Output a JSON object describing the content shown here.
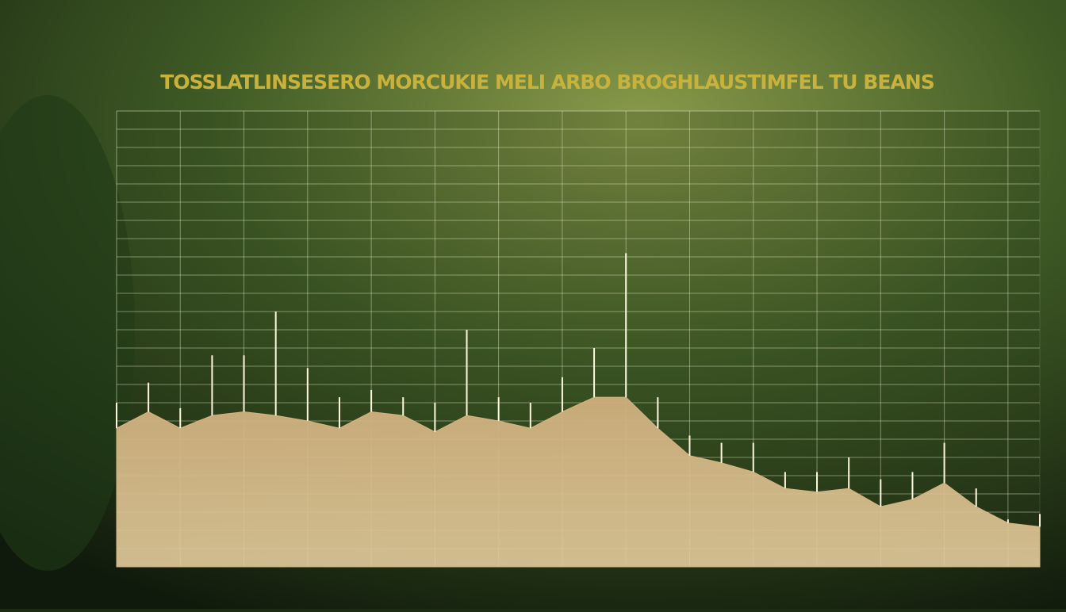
{
  "chart_data": {
    "type": "area",
    "title": "TOSSLATLINSESERO MORCUKIE MELI ARBO BROGHLAUSTIMFEL TU BEANS",
    "x": [
      0,
      1,
      2,
      3,
      4,
      5,
      6,
      7,
      8,
      9,
      10,
      11,
      12,
      13,
      14,
      15,
      16,
      17,
      18,
      19,
      20,
      21,
      22,
      23,
      24,
      25,
      26,
      27,
      28,
      29
    ],
    "values": [
      7.6,
      8.5,
      7.6,
      8.3,
      8.5,
      8.3,
      8.0,
      7.6,
      8.5,
      8.3,
      7.4,
      8.3,
      8.0,
      7.6,
      8.5,
      9.3,
      9.3,
      7.6,
      6.1,
      5.7,
      5.2,
      4.3,
      4.1,
      4.3,
      3.3,
      3.7,
      4.6,
      3.3,
      2.4,
      2.2
    ],
    "peaks": [
      9.0,
      10.1,
      8.7,
      11.6,
      11.6,
      14.0,
      10.9,
      9.3,
      9.7,
      9.3,
      9.0,
      13.0,
      9.3,
      9.0,
      10.4,
      12.0,
      17.2,
      9.3,
      7.2,
      6.8,
      6.8,
      5.2,
      5.2,
      6.0,
      4.8,
      5.2,
      6.8,
      4.3,
      2.6,
      2.9
    ],
    "color": "#d2b583",
    "xlim": [
      0,
      29
    ],
    "xticks": [
      0,
      2,
      4,
      6,
      8,
      10,
      12,
      14,
      16,
      18,
      20,
      22,
      24,
      26,
      28
    ],
    "ylim": [
      0,
      25
    ],
    "yticks": [
      0,
      1,
      2,
      3,
      4,
      5,
      6,
      7,
      8,
      9,
      10,
      11,
      12,
      13,
      14,
      15,
      16,
      17,
      18,
      19,
      20,
      21,
      22,
      23,
      24,
      25
    ],
    "grid": true
  }
}
